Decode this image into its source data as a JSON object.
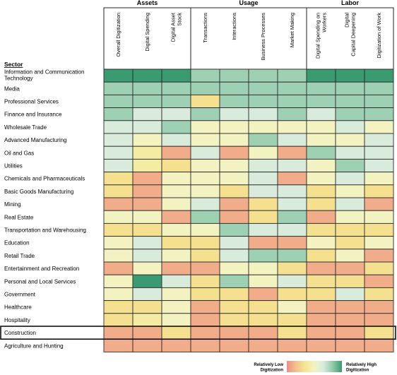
{
  "chart_data": {
    "type": "heatmap",
    "row_header": "Sector",
    "groups": [
      {
        "name": "Assets",
        "columns": [
          "Overall Digitization",
          "Digital Spending",
          "Digital Asset\nStock"
        ]
      },
      {
        "name": "Usage",
        "columns": [
          "Transactions",
          "Interactions",
          "Business Processes",
          "Market Making"
        ]
      },
      {
        "name": "Labor",
        "columns": [
          "Digital Spending on\nWorkers",
          "Digital\nCapital Deepening",
          "Digitization of Work"
        ]
      }
    ],
    "rows": [
      "Information and Communication\nTechnology",
      "Media",
      "Professional Services",
      "Finance and Insurance",
      "Wholesale Trade",
      "Advanced Manufacturing",
      "Oil and Gas",
      "Utilities",
      "Chemicals and Pharmaceuticals",
      "Basic Goods Manufacturing",
      "Mining",
      "Real Estate",
      "Transportation and Warehousing",
      "Education",
      "Retail Trade",
      "Entertainment and Recreation",
      "Personal and Local Services",
      "Government",
      "Healthcare",
      "Hospitality",
      "Construction",
      "Agriculture and Hunting"
    ],
    "values": [
      [
        1.0,
        1.0,
        1.0,
        0.8,
        0.8,
        0.8,
        0.8,
        1.0,
        1.0,
        1.0
      ],
      [
        0.8,
        0.8,
        0.8,
        0.8,
        0.8,
        0.8,
        0.8,
        0.8,
        0.8,
        0.8
      ],
      [
        0.8,
        0.8,
        0.8,
        0.3,
        0.8,
        0.8,
        0.8,
        0.8,
        0.8,
        0.8
      ],
      [
        0.8,
        0.65,
        0.65,
        0.8,
        0.65,
        0.65,
        0.8,
        0.65,
        0.8,
        0.8
      ],
      [
        0.65,
        0.65,
        0.8,
        0.5,
        0.5,
        0.5,
        0.5,
        0.5,
        0.65,
        0.5
      ],
      [
        0.65,
        0.5,
        0.65,
        0.5,
        0.5,
        0.8,
        0.65,
        0.5,
        0.5,
        0.65
      ],
      [
        0.65,
        0.4,
        0.1,
        0.65,
        0.1,
        0.5,
        0.1,
        0.8,
        0.65,
        0.65
      ],
      [
        0.65,
        0.4,
        0.3,
        0.5,
        0.5,
        0.65,
        0.65,
        0.5,
        0.8,
        0.65
      ],
      [
        0.3,
        0.1,
        0.5,
        0.5,
        0.5,
        0.65,
        0.1,
        0.5,
        0.65,
        0.5
      ],
      [
        0.3,
        0.1,
        0.5,
        0.5,
        0.3,
        0.65,
        0.65,
        0.3,
        0.5,
        0.3
      ],
      [
        0.1,
        0.1,
        0.5,
        0.65,
        0.1,
        0.3,
        0.65,
        0.3,
        0.65,
        0.1
      ],
      [
        0.5,
        0.5,
        0.1,
        0.8,
        0.1,
        0.3,
        0.8,
        0.1,
        0.5,
        0.5
      ],
      [
        0.3,
        0.3,
        0.5,
        0.5,
        0.8,
        0.65,
        0.65,
        0.3,
        0.3,
        0.3
      ],
      [
        0.5,
        0.65,
        0.3,
        0.3,
        0.65,
        0.1,
        0.1,
        0.5,
        0.3,
        0.5
      ],
      [
        0.5,
        0.65,
        0.5,
        0.3,
        0.65,
        0.8,
        0.8,
        0.3,
        0.5,
        0.1
      ],
      [
        0.1,
        0.5,
        0.1,
        0.1,
        0.5,
        0.5,
        0.3,
        0.1,
        0.1,
        0.3
      ],
      [
        0.5,
        1.0,
        0.65,
        0.3,
        0.8,
        0.5,
        0.65,
        0.3,
        0.3,
        0.1
      ],
      [
        0.5,
        0.65,
        0.5,
        0.3,
        0.3,
        0.1,
        0.3,
        0.3,
        0.65,
        0.3
      ],
      [
        0.3,
        0.3,
        0.5,
        0.1,
        0.3,
        0.3,
        0.5,
        0.1,
        0.1,
        0.1
      ],
      [
        0.3,
        0.4,
        0.5,
        0.1,
        0.3,
        0.3,
        0.3,
        0.1,
        0.1,
        0.1
      ],
      [
        0.1,
        0.1,
        0.3,
        0.1,
        0.1,
        0.1,
        0.3,
        0.1,
        0.1,
        0.3
      ],
      [
        0.1,
        0.1,
        0.1,
        0.1,
        0.1,
        0.1,
        0.1,
        0.1,
        0.1,
        0.1
      ]
    ],
    "value_range": [
      0,
      1
    ],
    "highlighted_row": "Construction",
    "legend": {
      "low_label": "Relatively Low\nDigitization",
      "high_label": "Relatively High\nDigitization",
      "colors": [
        "#ee8e86",
        "#f3c08d",
        "#f5e88f",
        "#f3f3c2",
        "#d6ebdf",
        "#90caa8",
        "#3a9b70"
      ],
      "placement": "bottom-right"
    }
  }
}
